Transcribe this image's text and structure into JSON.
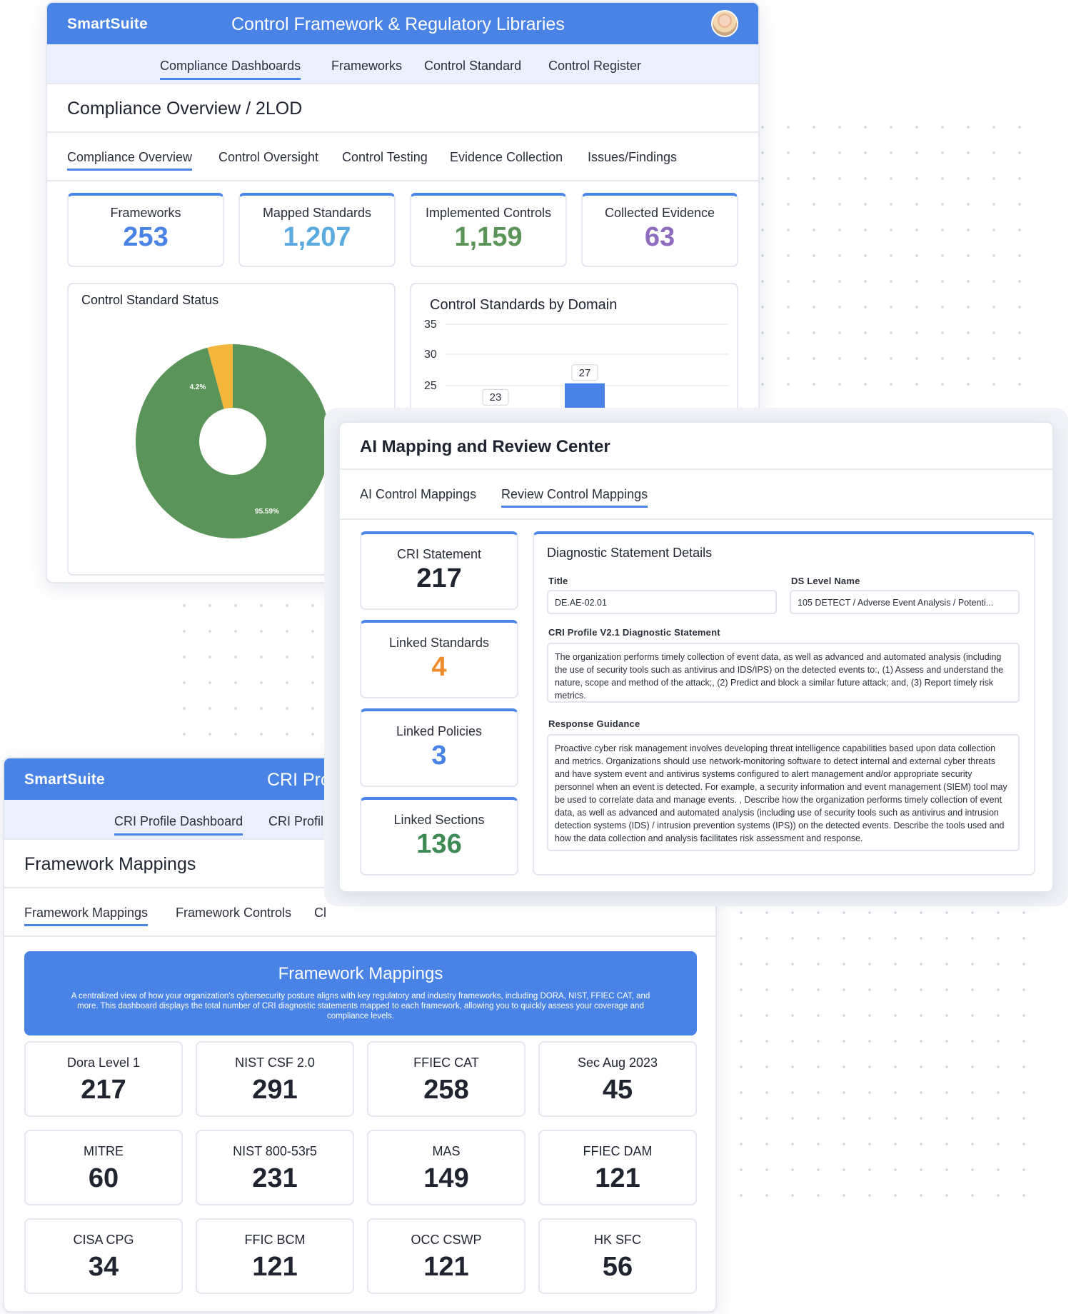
{
  "panel1": {
    "brand": "SmartSuite",
    "app_title": "Control Framework & Regulatory Libraries",
    "nav": [
      "Compliance Dashboards",
      "Frameworks",
      "Control Standard",
      "Control Register"
    ],
    "section_title": "Compliance Overview / 2LOD",
    "tabs": [
      "Compliance Overview",
      "Control Oversight",
      "Control Testing",
      "Evidence Collection",
      "Issues/Findings"
    ],
    "stats": [
      {
        "label": "Frameworks",
        "value": "253",
        "color": "#4a83e6"
      },
      {
        "label": "Mapped Standards",
        "value": "1,207",
        "color": "#5aa9df"
      },
      {
        "label": "Implemented Controls",
        "value": "1,159",
        "color": "#5b9459"
      },
      {
        "label": "Collected Evidence",
        "value": "63",
        "color": "#8e6bbf"
      }
    ],
    "pie_card_title": "Control Standard Status",
    "bar_card_title": "Control Standards by Domain"
  },
  "chart_data": [
    {
      "type": "pie",
      "title": "Control Standard Status",
      "slices": [
        {
          "label": "95.59%",
          "value": 95.59,
          "color": "#5b9459"
        },
        {
          "label": "4.2%",
          "value": 4.2,
          "color": "#f5b73b"
        }
      ]
    },
    {
      "type": "bar",
      "title": "Control Standards by Domain",
      "y_ticks": [
        "35",
        "30",
        "25"
      ],
      "ylim": [
        25,
        35
      ],
      "bars": [
        {
          "value": 23,
          "label": "23",
          "color": "#2a9cac"
        },
        {
          "value": 27,
          "label": "27",
          "color": "#4a83e6"
        }
      ]
    }
  ],
  "panel2": {
    "title": "AI Mapping and Review Center",
    "tabs": [
      "AI Control Mappings",
      "Review Control Mappings"
    ],
    "stats": [
      {
        "label": "CRI Statement",
        "value": "217",
        "color": "#1f2430"
      },
      {
        "label": "Linked Standards",
        "value": "4",
        "color": "#f08c2c"
      },
      {
        "label": "Linked Policies",
        "value": "3",
        "color": "#4a83e6"
      },
      {
        "label": "Linked Sections",
        "value": "136",
        "color": "#3f8a55"
      }
    ],
    "details": {
      "title": "Diagnostic Statement Details",
      "title_label": "Title",
      "title_value": "DE.AE-02.01",
      "ds_label": "DS Level Name",
      "ds_value": "105 DETECT / Adverse Event Analysis / Potenti...",
      "statement_label": "CRI Profile V2.1 Diagnostic Statement",
      "statement": "The organization performs timely collection of event data, as well as advanced and automated analysis (including the use of security tools such as antivirus and IDS/IPS) on the detected events to:, (1) Assess and understand the nature, scope and method of the attack;, (2) Predict and block a similar future attack; and, (3) Report timely risk metrics.",
      "guidance_label": "Response Guidance",
      "guidance": "Proactive cyber risk management involves developing threat intelligence capabilities based upon data collection and metrics. Organizations should use network-monitoring software to detect internal and external cyber threats and have system event and antivirus systems configured to alert management and/or appropriate security personnel when an event is detected. For example, a security information and event management (SIEM) tool may be used to correlate data and manage events. , Describe how the organization performs timely collection of event data, as well as advanced and automated analysis (including use of security tools such as antivirus and intrusion detection systems (IDS) / intrusion prevention systems (IPS)) on the detected events. Describe the tools used and how the data collection and analysis facilitates risk assessment and response."
    }
  },
  "panel3": {
    "brand": "SmartSuite",
    "app_title": "CRI Pro",
    "nav": [
      "CRI Profile Dashboard",
      "CRI Profil"
    ],
    "section_title": "Framework Mappings",
    "tabs": [
      "Framework Mappings",
      "Framework Controls",
      "Cl"
    ],
    "banner_title": "Framework Mappings",
    "banner_text": "A centralized view of how your organization's cybersecurity posture aligns with key regulatory and industry frameworks, including DORA, NIST, FFIEC CAT, and more. This dashboard displays the total number of CRI diagnostic statements mapped to each framework, allowing you to quickly assess your coverage and compliance levels.",
    "frameworks": [
      {
        "label": "Dora Level 1",
        "value": "217"
      },
      {
        "label": "NIST CSF 2.0",
        "value": "291"
      },
      {
        "label": "FFIEC CAT",
        "value": "258"
      },
      {
        "label": "Sec Aug 2023",
        "value": "45"
      },
      {
        "label": "MITRE",
        "value": "60"
      },
      {
        "label": "NIST 800-53r5",
        "value": "231"
      },
      {
        "label": "MAS",
        "value": "149"
      },
      {
        "label": "FFIEC DAM",
        "value": "121"
      },
      {
        "label": "CISA CPG",
        "value": "34"
      },
      {
        "label": "FFIC BCM",
        "value": "121"
      },
      {
        "label": "OCC CSWP",
        "value": "121"
      },
      {
        "label": "HK SFC",
        "value": "56"
      }
    ]
  }
}
